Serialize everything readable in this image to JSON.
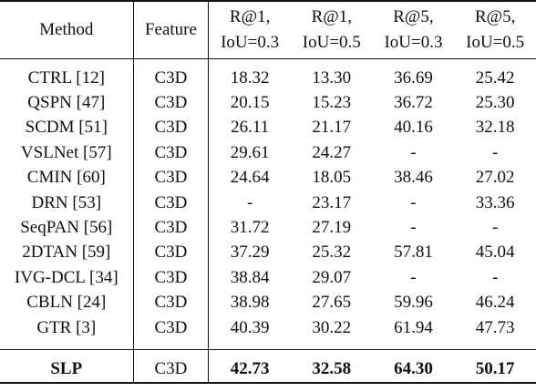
{
  "table": {
    "headers": {
      "method": "Method",
      "feature": "Feature",
      "m1": [
        "R@1,",
        "IoU=0.3"
      ],
      "m2": [
        "R@1,",
        "IoU=0.5"
      ],
      "m3": [
        "R@5,",
        "IoU=0.3"
      ],
      "m4": [
        "R@5,",
        "IoU=0.5"
      ]
    },
    "rows": [
      {
        "method": "CTRL [12]",
        "feature": "C3D",
        "r1_03": "18.32",
        "r1_05": "13.30",
        "r5_03": "36.69",
        "r5_05": "25.42"
      },
      {
        "method": "QSPN [47]",
        "feature": "C3D",
        "r1_03": "20.15",
        "r1_05": "15.23",
        "r5_03": "36.72",
        "r5_05": "25.30"
      },
      {
        "method": "SCDM [51]",
        "feature": "C3D",
        "r1_03": "26.11",
        "r1_05": "21.17",
        "r5_03": "40.16",
        "r5_05": "32.18"
      },
      {
        "method": "VSLNet [57]",
        "feature": "C3D",
        "r1_03": "29.61",
        "r1_05": "24.27",
        "r5_03": "-",
        "r5_05": "-"
      },
      {
        "method": "CMIN [60]",
        "feature": "C3D",
        "r1_03": "24.64",
        "r1_05": "18.05",
        "r5_03": "38.46",
        "r5_05": "27.02"
      },
      {
        "method": "DRN [53]",
        "feature": "C3D",
        "r1_03": "-",
        "r1_05": "23.17",
        "r5_03": "-",
        "r5_05": "33.36"
      },
      {
        "method": "SeqPAN [56]",
        "feature": "C3D",
        "r1_03": "31.72",
        "r1_05": "27.19",
        "r5_03": "-",
        "r5_05": "-"
      },
      {
        "method": "2DTAN [59]",
        "feature": "C3D",
        "r1_03": "37.29",
        "r1_05": "25.32",
        "r5_03": "57.81",
        "r5_05": "45.04"
      },
      {
        "method": "IVG-DCL [34]",
        "feature": "C3D",
        "r1_03": "38.84",
        "r1_05": "29.07",
        "r5_03": "-",
        "r5_05": "-"
      },
      {
        "method": "CBLN [24]",
        "feature": "C3D",
        "r1_03": "38.98",
        "r1_05": "27.65",
        "r5_03": "59.96",
        "r5_05": "46.24"
      },
      {
        "method": "GTR [3]",
        "feature": "C3D",
        "r1_03": "40.39",
        "r1_05": "30.22",
        "r5_03": "61.94",
        "r5_05": "47.73"
      }
    ],
    "final_row": {
      "method": "SLP",
      "feature": "C3D",
      "r1_03": "42.73",
      "r1_05": "32.58",
      "r5_03": "64.30",
      "r5_05": "50.17"
    }
  }
}
